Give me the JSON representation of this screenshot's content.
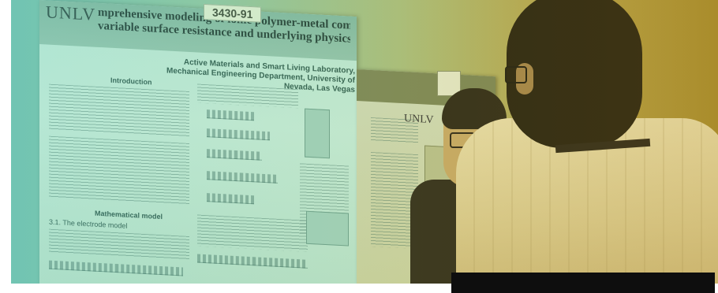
{
  "photo": {
    "description_colors": {
      "poster_bg": "#b8e6d5",
      "tint_left": "#6fbfae",
      "tint_right": "#a58a2c",
      "panel": "#0e0e0e"
    }
  },
  "poster": {
    "logo": "UNLV",
    "tag": "3430-91",
    "title_line1": "mprehensive modeling of ionic polymer-metal composite actuators based upon",
    "title_line2": "variable surface resistance and underlying physics of the polymer membrane",
    "affiliation": "Active Materials and Smart Living Laboratory, Mechanical Engineering Department, University of Nevada, Las Vegas",
    "section_intro": "Introduction",
    "section_model": "Mathematical model",
    "section_electrode": "3.1. The electrode model"
  },
  "poster2": {
    "logo": "UNLV"
  }
}
